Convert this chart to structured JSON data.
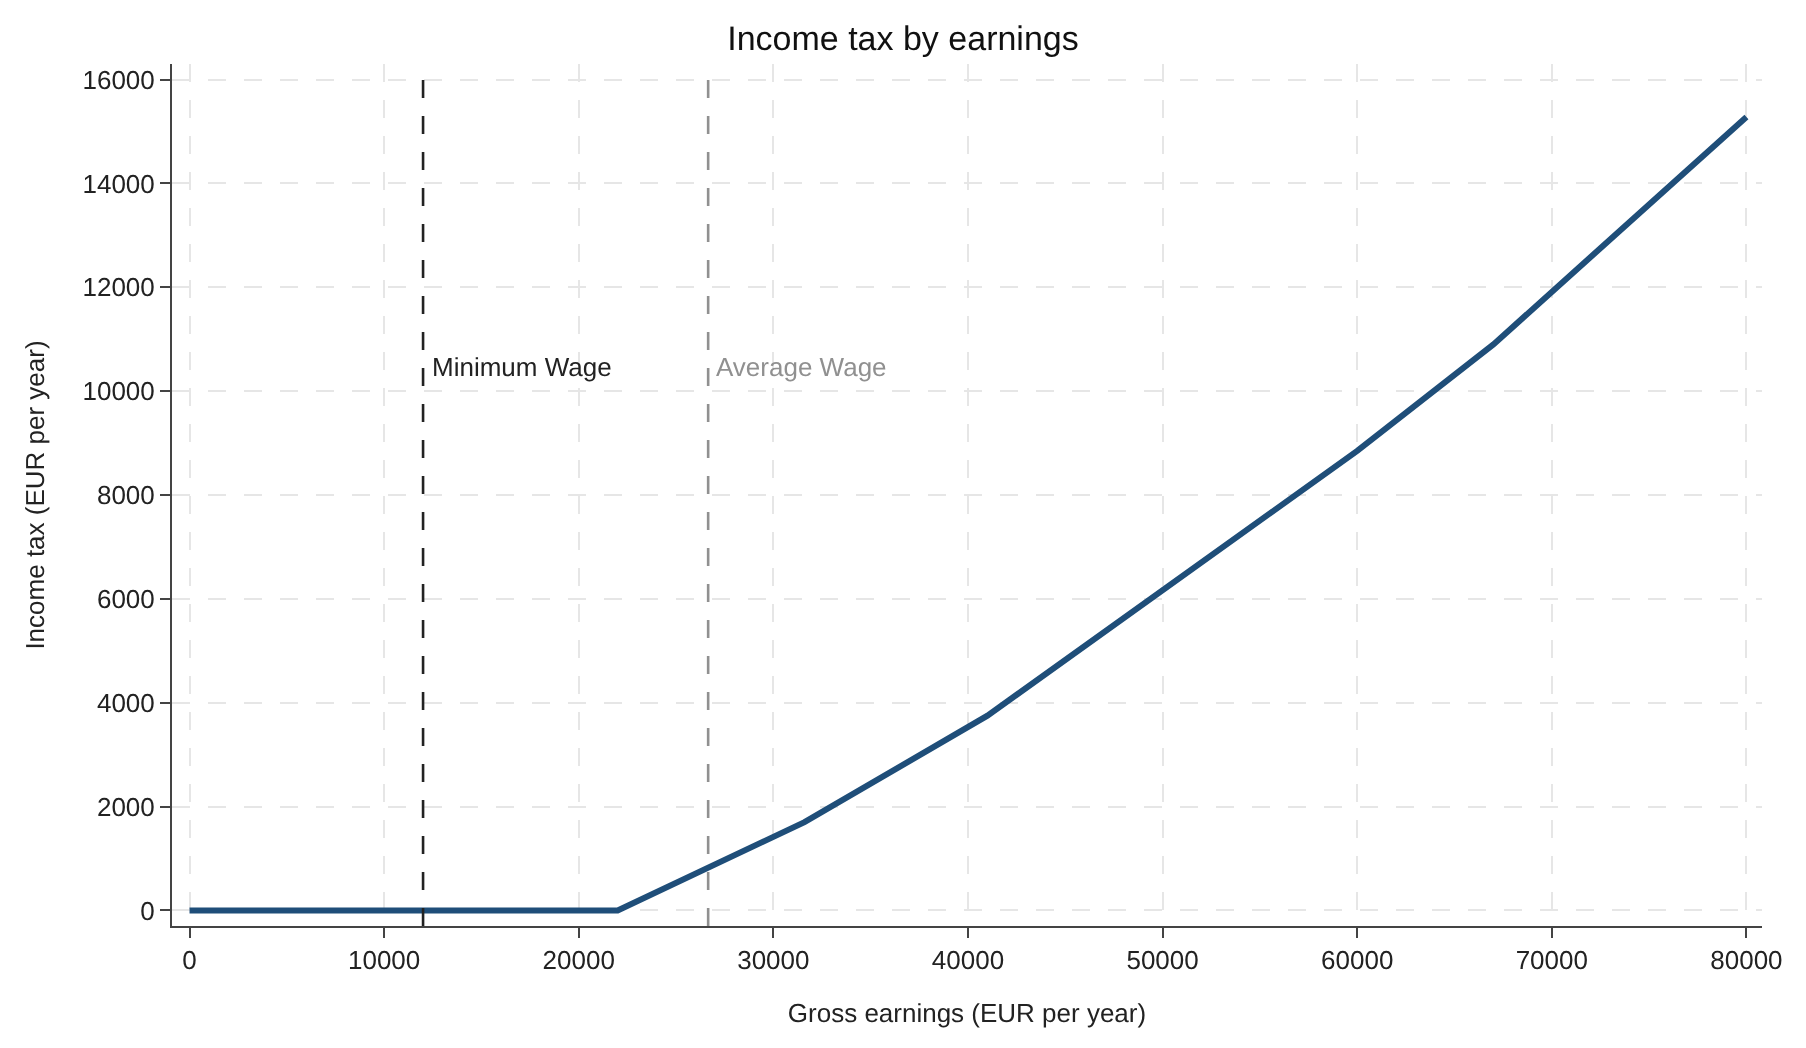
{
  "chart_data": {
    "type": "line",
    "title": "Income tax by earnings",
    "xlabel": "Gross earnings (EUR per year)",
    "ylabel": "Income tax (EUR per year)",
    "x": [
      0,
      22000,
      31600,
      41000,
      60000,
      67000,
      80000
    ],
    "series": [
      {
        "color": "#1f4e79",
        "values": [
          0,
          0,
          1700,
          3750,
          8850,
          10900,
          15280
        ]
      }
    ],
    "xlim": [
      -900,
      80800
    ],
    "ylim": [
      -300,
      16300
    ],
    "xticks": [
      0,
      10000,
      20000,
      30000,
      40000,
      50000,
      60000,
      70000,
      80000
    ],
    "yticks": [
      0,
      2000,
      4000,
      6000,
      8000,
      10000,
      12000,
      14000,
      16000
    ],
    "grid": true,
    "marker": "none",
    "line_style": "solid",
    "ref_lines": [
      {
        "axis": "x",
        "value": 12000,
        "label": "Minimum Wage",
        "color": "#222222",
        "line_style": "dashed"
      },
      {
        "axis": "x",
        "value": 26650,
        "label": "Average Wage",
        "color": "#909090",
        "line_style": "dashed"
      }
    ]
  }
}
